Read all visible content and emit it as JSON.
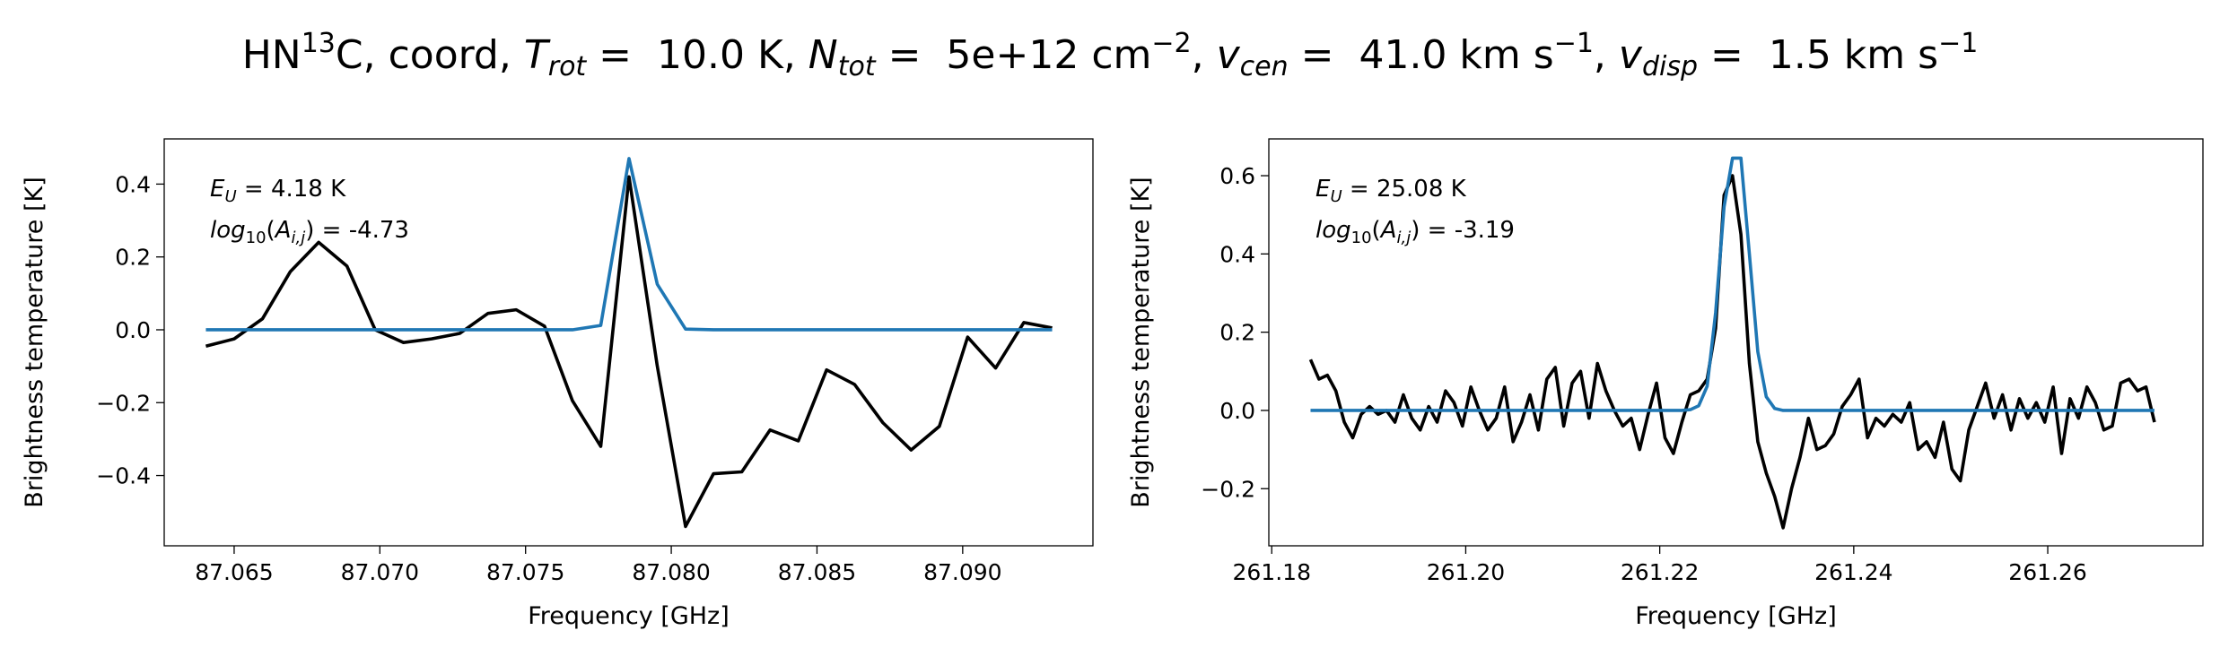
{
  "title": [
    "HN",
    "13",
    "C, coord, ",
    "T",
    "rot",
    " =  10.0 K, ",
    "N",
    "tot",
    " =  5e+12 cm",
    "−2",
    ", ",
    "v",
    "cen",
    " =  41.0 km s",
    "−1",
    ", ",
    "v",
    "disp",
    " =  1.5 km s",
    "−1"
  ],
  "chart_data": [
    {
      "type": "line",
      "annotations": [
        [
          "E",
          "U",
          " = 4.18 K"
        ],
        [
          "log",
          "10",
          "(",
          "A",
          "i,j",
          ") = -4.73"
        ]
      ],
      "xlabel": "Frequency [GHz]",
      "ylabel": "Brightness temperature [K]",
      "xlim": [
        87.0626,
        87.09447
      ],
      "ylim": [
        -0.593,
        0.524
      ],
      "xticks": [
        87.065,
        {
          "value": 87.07,
          "label": "87.070"
        },
        87.075,
        {
          "value": 87.08,
          "label": "87.080"
        },
        87.085,
        {
          "value": 87.09,
          "label": "87.090"
        }
      ],
      "yticks": [
        {
          "value": -0.4,
          "label": "−0.4"
        },
        {
          "value": -0.2,
          "label": "−0.2"
        },
        {
          "value": 0,
          "label": "0.0"
        },
        0.2,
        0.4
      ],
      "x": [
        87.06403,
        87.065,
        87.06597,
        87.06693,
        87.0679,
        87.06887,
        87.06984,
        87.07081,
        87.07177,
        87.07274,
        87.07371,
        87.07468,
        87.07565,
        87.07661,
        87.07758,
        87.07855,
        87.07952,
        87.08049,
        87.08145,
        87.08242,
        87.08339,
        87.08436,
        87.08533,
        87.08629,
        87.08726,
        87.08823,
        87.0892,
        87.09017,
        87.09113,
        87.0921,
        87.09307
      ],
      "series": [
        {
          "color": "#000000",
          "values": [
            -0.045,
            -0.025,
            0.03,
            0.16,
            0.24,
            0.175,
            0.0,
            -0.035,
            -0.025,
            -0.01,
            0.045,
            0.055,
            0.01,
            -0.195,
            -0.32,
            0.42,
            -0.1,
            -0.54,
            -0.395,
            -0.39,
            -0.275,
            -0.305,
            -0.11,
            -0.15,
            -0.255,
            -0.33,
            -0.265,
            -0.02,
            -0.105,
            0.02,
            0.005
          ]
        },
        {
          "color": "#1f77b4",
          "values": [
            0,
            0,
            0,
            0,
            0,
            0,
            0,
            0,
            0,
            0,
            0,
            0,
            0,
            0,
            0.012,
            0.47,
            0.125,
            0.002,
            0,
            0,
            0,
            0,
            0,
            0,
            0,
            0,
            0,
            0,
            0,
            0,
            0
          ]
        }
      ]
    },
    {
      "type": "line",
      "annotations": [
        [
          "E",
          "U",
          " = 25.08 K"
        ],
        [
          "log",
          "10",
          "(",
          "A",
          "i,j",
          ") = -3.19"
        ]
      ],
      "xlabel": "Frequency [GHz]",
      "ylabel": "Brightness temperature [K]",
      "xlim": [
        261.1797,
        261.276
      ],
      "ylim": [
        -0.346,
        0.694
      ],
      "xticks": [
        261.18,
        {
          "value": 261.2,
          "label": "261.20"
        },
        261.22,
        261.24,
        261.26
      ],
      "yticks": [
        {
          "value": -0.2,
          "label": "−0.2"
        },
        {
          "value": 0,
          "label": "0.0"
        },
        0.2,
        0.4,
        0.6
      ],
      "x": [
        261.184,
        261.18487,
        261.18574,
        261.18661,
        261.18748,
        261.18835,
        261.18922,
        261.19009,
        261.19096,
        261.19183,
        261.1927,
        261.19357,
        261.19444,
        261.19531,
        261.19618,
        261.19705,
        261.19792,
        261.19879,
        261.19966,
        261.20053,
        261.2014,
        261.20227,
        261.20314,
        261.20401,
        261.20488,
        261.20575,
        261.20662,
        261.20749,
        261.20836,
        261.20923,
        261.2101,
        261.21097,
        261.21184,
        261.21271,
        261.21358,
        261.21445,
        261.21532,
        261.21619,
        261.21706,
        261.21793,
        261.2188,
        261.21967,
        261.22054,
        261.22141,
        261.22228,
        261.22315,
        261.22402,
        261.22489,
        261.22576,
        261.22663,
        261.2275,
        261.22837,
        261.22924,
        261.23011,
        261.23098,
        261.23185,
        261.23272,
        261.23359,
        261.23446,
        261.23533,
        261.2362,
        261.23707,
        261.23794,
        261.23881,
        261.23968,
        261.24055,
        261.24142,
        261.24229,
        261.24316,
        261.24403,
        261.2449,
        261.24577,
        261.24664,
        261.24751,
        261.24838,
        261.24925,
        261.25012,
        261.25099,
        261.25186,
        261.25273,
        261.2536,
        261.25447,
        261.25534,
        261.25621,
        261.25708,
        261.25795,
        261.25882,
        261.25969,
        261.26056,
        261.26143,
        261.2623,
        261.26317,
        261.26404,
        261.26491,
        261.26578,
        261.26665,
        261.26752,
        261.26839,
        261.26926,
        261.27013,
        261.271
      ],
      "series": [
        {
          "color": "#000000",
          "values": [
            0.13,
            0.08,
            0.09,
            0.05,
            -0.03,
            -0.07,
            -0.01,
            0.01,
            -0.01,
            0.0,
            -0.03,
            0.04,
            -0.02,
            -0.05,
            0.01,
            -0.03,
            0.05,
            0.02,
            -0.04,
            0.06,
            0.0,
            -0.05,
            -0.02,
            0.06,
            -0.08,
            -0.03,
            0.04,
            -0.05,
            0.08,
            0.11,
            -0.04,
            0.07,
            0.1,
            -0.02,
            0.12,
            0.05,
            0.0,
            -0.04,
            -0.02,
            -0.1,
            -0.01,
            0.07,
            -0.07,
            -0.11,
            -0.03,
            0.04,
            0.05,
            0.08,
            0.21,
            0.55,
            0.6,
            0.45,
            0.12,
            -0.08,
            -0.16,
            -0.22,
            -0.3,
            -0.2,
            -0.12,
            -0.02,
            -0.1,
            -0.09,
            -0.06,
            0.01,
            0.04,
            0.08,
            -0.07,
            -0.02,
            -0.04,
            -0.01,
            -0.03,
            0.02,
            -0.1,
            -0.08,
            -0.12,
            -0.03,
            -0.15,
            -0.18,
            -0.05,
            0.01,
            0.07,
            -0.02,
            0.04,
            -0.05,
            0.03,
            -0.02,
            0.02,
            -0.03,
            0.06,
            -0.11,
            0.03,
            -0.02,
            0.06,
            0.02,
            -0.05,
            -0.04,
            0.07,
            0.08,
            0.05,
            0.06,
            -0.03
          ]
        },
        {
          "color": "#1f77b4",
          "values": [
            0,
            0,
            0,
            0,
            0,
            0,
            0,
            0,
            0,
            0,
            0,
            0,
            0,
            0,
            0,
            0,
            0,
            0,
            0,
            0,
            0,
            0,
            0,
            0,
            0,
            0,
            0,
            0,
            0,
            0,
            0,
            0,
            0,
            0,
            0,
            0,
            0,
            0,
            0,
            0,
            0,
            0,
            0,
            0,
            0,
            0.002,
            0.012,
            0.062,
            0.25,
            0.52,
            0.645,
            0.645,
            0.4,
            0.15,
            0.035,
            0.005,
            0,
            0,
            0,
            0,
            0,
            0,
            0,
            0,
            0,
            0,
            0,
            0,
            0,
            0,
            0,
            0,
            0,
            0,
            0,
            0,
            0,
            0,
            0,
            0,
            0,
            0,
            0,
            0,
            0,
            0,
            0,
            0,
            0,
            0,
            0,
            0,
            0,
            0,
            0,
            0,
            0,
            0,
            0,
            0,
            0
          ]
        }
      ]
    }
  ]
}
